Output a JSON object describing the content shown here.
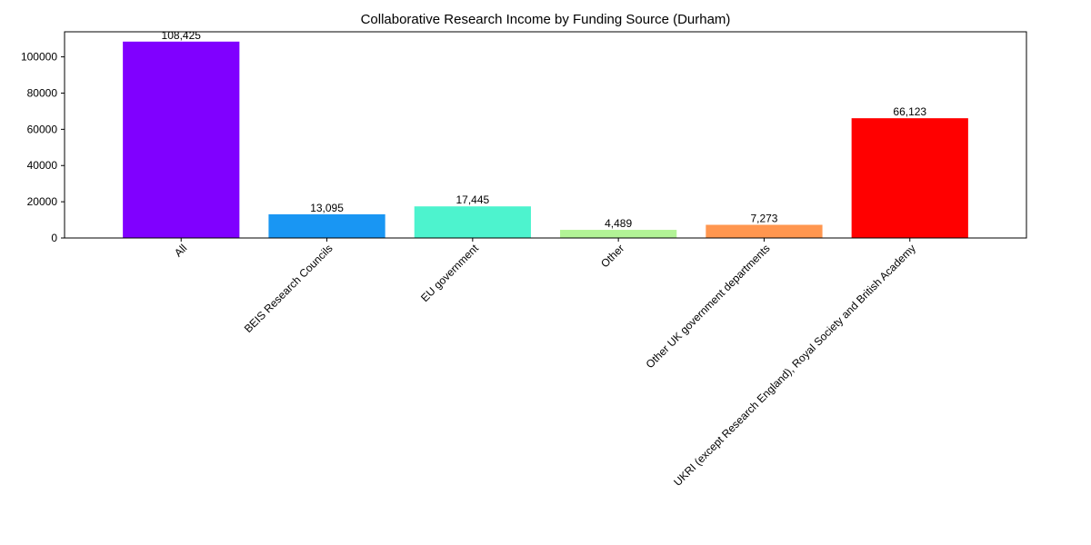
{
  "chart_data": {
    "type": "bar",
    "title": "Collaborative Research Income by Funding Source (Durham)",
    "xlabel": "",
    "ylabel": "",
    "categories": [
      "All",
      "BEIS Research Councils",
      "EU government",
      "Other",
      "Other UK government departments",
      "UKRI (except Research England), Royal Society and British Academy"
    ],
    "values": [
      108425,
      13095,
      17445,
      4489,
      7273,
      66123
    ],
    "value_labels": [
      "108,425",
      "13,095",
      "17,445",
      "4,489",
      "7,273",
      "66,123"
    ],
    "colors": [
      "#8000ff",
      "#1996f3",
      "#4df3ce",
      "#b2f396",
      "#ff964f",
      "#ff0000"
    ],
    "ylim": [
      0,
      113846
    ],
    "yticks": [
      0,
      20000,
      40000,
      60000,
      80000,
      100000
    ],
    "ytick_labels": [
      "0",
      "20000",
      "40000",
      "60000",
      "80000",
      "100000"
    ],
    "grid": false,
    "legend": "none"
  }
}
